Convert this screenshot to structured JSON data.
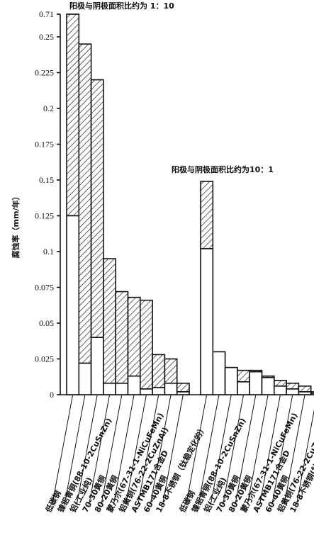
{
  "chart_data": {
    "type": "bar",
    "stacked": true,
    "ylabel": "腐蚀率（mm/年）",
    "y_ticks": [
      "0",
      "0.025",
      "0.05",
      "0.075",
      "0.1",
      "0.125",
      "0.15",
      "0.175",
      "0.2",
      "0.225",
      "0.25",
      "0.71"
    ],
    "y_tick_values": [
      0,
      0.025,
      0.05,
      0.075,
      0.1,
      0.125,
      0.15,
      0.175,
      0.2,
      0.225,
      0.25,
      0.71
    ],
    "y_axis_break": "0.25 → 0.71",
    "hatch_pattern": "diagonal",
    "groups": [
      {
        "title": "阳极与阴极面积比约为 1：10",
        "categories": [
          "低碳钢",
          "镍铝青铜(88-10-2CuSnZn)",
          "铝(工业纯)",
          "70-30黄铜",
          "80-20黄铜",
          "蒙乃尔(67-31-1-NiCuFeMn)",
          "铝黄铜(76-22-2CuZnAl)",
          "ASTMB171合金D",
          "60-40黄铜",
          "18-8不锈钢（钛稳定化的）"
        ],
        "series": [
          {
            "values": [
              0.125,
              0.022,
              0.04,
              0.008,
              0.008,
              0.013,
              0.004,
              0.005,
              0.008,
              0.002
            ]
          },
          {
            "values": [
              0.71,
              0.245,
              0.22,
              0.095,
              0.072,
              0.068,
              0.066,
              0.028,
              0.025,
              0.008
            ]
          }
        ]
      },
      {
        "title": "阳极与阴极面积比约为10：1",
        "categories": [
          "低碳钢",
          "镍铝青铜(88-10-2CuSnZn)",
          "铝(工业纯)",
          "70-30黄铜",
          "80-20黄铜",
          "蒙乃尔(67-31-1-NiCuFeMn)",
          "ASTMB171合金D",
          "60-40黄铜",
          "铝黄铜(76-22-2CuZnAl)",
          "18-8不锈钢(钛稳定化的)"
        ],
        "series": [
          {
            "values": [
              0.102,
              0.03,
              0.019,
              0.009,
              0.016,
              0.012,
              0.006,
              0.004,
              0.002,
              0.001
            ]
          },
          {
            "values": [
              0.149,
              0.03,
              0.019,
              0.017,
              0.017,
              0.013,
              0.01,
              0.008,
              0.006,
              0.002
            ]
          }
        ]
      }
    ]
  }
}
